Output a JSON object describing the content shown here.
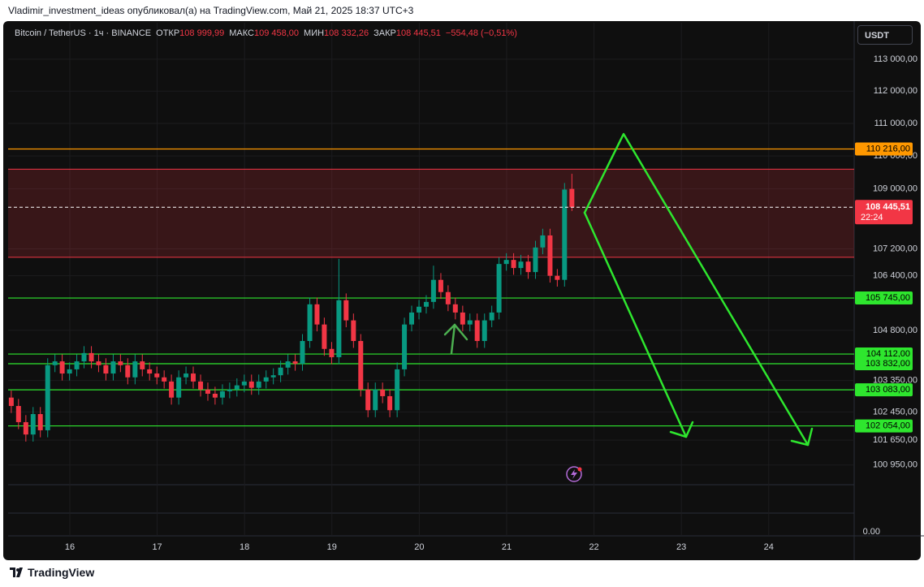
{
  "header": {
    "title": "Vladimir_investment_ideas опубликовал(а) на TradingView.com, Май 21, 2025 18:37 UTC+3"
  },
  "footer": {
    "brand": "TradingView"
  },
  "chart_data": {
    "type": "candlestick",
    "symbol": "Bitcoin / TetherUS · 1ч · BINANCE",
    "ohlc_legend": {
      "open_label": "ОТКР",
      "open": "108 999,99",
      "high_label": "МАКС",
      "high": "109 458,00",
      "low_label": "МИН",
      "low": "108 332,26",
      "close_label": "ЗАКР",
      "close": "108 445,51",
      "change": "−554,48 (−0,51%)"
    },
    "currency": "USDT",
    "log_scale": true,
    "grid": true,
    "up_color": "#089981",
    "down_color": "#f23645",
    "xlim": [
      15.294,
      24.978
    ],
    "xticks": [
      16,
      17,
      18,
      19,
      20,
      21,
      22,
      23,
      24
    ],
    "ylim": [
      100400,
      114150
    ],
    "yticks": [
      {
        "value": 113000,
        "label": "113 000,00"
      },
      {
        "value": 112000,
        "label": "112 000,00"
      },
      {
        "value": 111000,
        "label": "111 000,00"
      },
      {
        "value": 110000,
        "label": "110 000,00"
      },
      {
        "value": 109000,
        "label": "109 000,00"
      },
      {
        "value": 107200,
        "label": "107 200,00"
      },
      {
        "value": 106400,
        "label": "106 400,00"
      },
      {
        "value": 104800,
        "label": "104 800,00"
      },
      {
        "value": 103350,
        "label": "103 350,00"
      },
      {
        "value": 102450,
        "label": "102 450,00"
      },
      {
        "value": 101650,
        "label": "101 650,00"
      },
      {
        "value": 100950,
        "label": "100 950,00"
      }
    ],
    "lower_pane_yticks": [
      {
        "value": 0,
        "label": "0.00"
      }
    ],
    "series": [
      {
        "name": "Bitcoin / TetherUS",
        "x": [
          15.33,
          15.413,
          15.497,
          15.58,
          15.663,
          15.747,
          15.83,
          15.913,
          15.997,
          16.08,
          16.163,
          16.247,
          16.33,
          16.413,
          16.497,
          16.58,
          16.663,
          16.747,
          16.83,
          16.913,
          16.997,
          17.08,
          17.163,
          17.247,
          17.33,
          17.413,
          17.497,
          17.58,
          17.663,
          17.747,
          17.83,
          17.913,
          17.997,
          18.08,
          18.163,
          18.247,
          18.33,
          18.413,
          18.497,
          18.58,
          18.663,
          18.747,
          18.83,
          18.913,
          18.997,
          19.08,
          19.163,
          19.247,
          19.33,
          19.413,
          19.497,
          19.58,
          19.663,
          19.747,
          19.83,
          19.913,
          19.997,
          20.08,
          20.163,
          20.247,
          20.33,
          20.413,
          20.497,
          20.58,
          20.663,
          20.747,
          20.83,
          20.913,
          20.997,
          21.08,
          21.163,
          21.247,
          21.33,
          21.413,
          21.497,
          21.58,
          21.663,
          21.747
        ],
        "open": [
          102860,
          102620,
          102160,
          101810,
          102390,
          101930,
          103790,
          103900,
          103550,
          103670,
          103900,
          104140,
          103900,
          103790,
          103550,
          103900,
          103790,
          103440,
          103900,
          103670,
          103550,
          103440,
          103320,
          102860,
          103440,
          103550,
          103320,
          103090,
          102970,
          102860,
          103040,
          103090,
          103210,
          103320,
          103140,
          103320,
          103440,
          103500,
          103720,
          103900,
          103830,
          104490,
          105560,
          104970,
          104260,
          104020,
          105680,
          105090,
          104490,
          103090,
          102500,
          103090,
          102900,
          102500,
          103670,
          104970,
          105320,
          105490,
          105630,
          106280,
          105920,
          105560,
          105320,
          104970,
          105090,
          104490,
          105090,
          105320,
          106750,
          106870,
          106630,
          106820,
          106510,
          107240,
          107600,
          106400,
          106280,
          108999.99
        ],
        "high": [
          103060,
          102820,
          102360,
          102590,
          102590,
          103990,
          104100,
          104100,
          103870,
          104100,
          104340,
          104340,
          104100,
          103990,
          104100,
          104100,
          103990,
          104100,
          104100,
          103870,
          103750,
          103640,
          103520,
          103640,
          103750,
          103750,
          103520,
          103290,
          103170,
          103240,
          103290,
          103410,
          103520,
          103520,
          103520,
          103640,
          103700,
          103920,
          104100,
          104100,
          104690,
          105760,
          105760,
          105170,
          104460,
          106900,
          105880,
          105290,
          104690,
          103290,
          103290,
          103290,
          103100,
          103870,
          105170,
          105520,
          105690,
          105830,
          106700,
          106480,
          106120,
          105760,
          105520,
          105290,
          105290,
          105290,
          105520,
          106950,
          107070,
          107070,
          107020,
          107020,
          107440,
          107800,
          107800,
          106600,
          109180,
          109458
        ],
        "low": [
          102420,
          101960,
          101610,
          101610,
          101730,
          101730,
          103590,
          103350,
          103350,
          103470,
          103700,
          103700,
          103590,
          103350,
          103350,
          103590,
          103240,
          103240,
          103470,
          103350,
          103240,
          103120,
          102660,
          102660,
          103240,
          103120,
          102890,
          102770,
          102660,
          102660,
          102840,
          102890,
          103010,
          102940,
          102940,
          103120,
          103240,
          103300,
          103520,
          103630,
          103630,
          104290,
          104770,
          104060,
          103820,
          103820,
          104890,
          104290,
          102890,
          102300,
          102300,
          102700,
          102300,
          102300,
          103470,
          104770,
          105120,
          105290,
          105430,
          105720,
          105360,
          105120,
          104770,
          104770,
          104290,
          104290,
          104890,
          105120,
          106550,
          106430,
          106430,
          106310,
          106310,
          107040,
          106200,
          106080,
          106080,
          108332.26
        ],
        "close": [
          102620,
          102160,
          101810,
          102390,
          101930,
          103790,
          103900,
          103550,
          103670,
          103900,
          104140,
          103900,
          103790,
          103550,
          103900,
          103790,
          103440,
          103900,
          103670,
          103550,
          103440,
          103320,
          102860,
          103440,
          103550,
          103320,
          103090,
          102970,
          102860,
          103040,
          103090,
          103210,
          103320,
          103140,
          103320,
          103440,
          103500,
          103720,
          103900,
          103830,
          104490,
          105560,
          104970,
          104260,
          104020,
          105680,
          105090,
          104490,
          103090,
          102500,
          103090,
          102900,
          102500,
          103670,
          104970,
          105320,
          105490,
          105630,
          106280,
          105920,
          105560,
          105320,
          104970,
          105090,
          104490,
          105090,
          105320,
          106750,
          106870,
          106630,
          106820,
          106510,
          107240,
          107600,
          106400,
          106280,
          108980,
          108445.51
        ]
      }
    ],
    "price_line": {
      "value": 108445.51,
      "label": "108 445,51",
      "countdown": "22:24",
      "color": "#f23645"
    },
    "zone": {
      "from": 106950,
      "to": 109600,
      "color": "#f23645"
    },
    "levels": [
      {
        "value": 110216,
        "label": "110 216,00",
        "color": "#ff9800"
      },
      {
        "value": 105745,
        "label": "105 745,00",
        "color": "#2ee62e"
      },
      {
        "value": 104112,
        "label": "104 112,00",
        "color": "#2ee62e"
      },
      {
        "value": 103832,
        "label": "103 832,00",
        "color": "#2ee62e"
      },
      {
        "value": 103083,
        "label": "103 083,00",
        "color": "#2ee62e"
      },
      {
        "value": 102054,
        "label": "102 054,00",
        "color": "#2ee62e"
      }
    ]
  }
}
